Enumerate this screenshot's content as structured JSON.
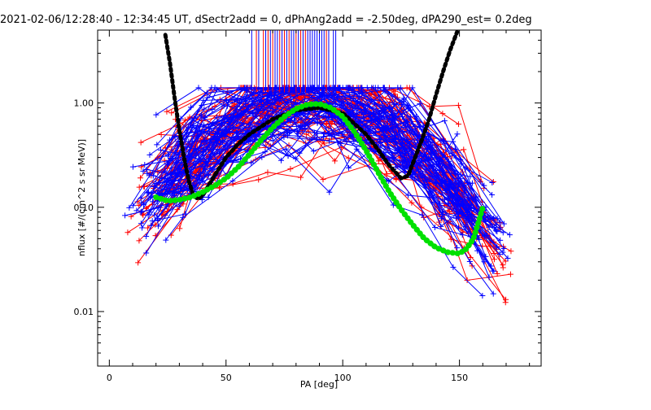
{
  "chart_data": {
    "type": "line",
    "title": "2021-02-06/12:28:40 - 12:34:45 UT, dSectr2add = 0, dPhAng2add = -2.50deg, dPA290_est=   0.2deg",
    "xlabel": "PA [deg]",
    "ylabel": "nflux [#/(cm^2 s sr MeV)]",
    "xlim": [
      -5,
      185
    ],
    "ylim": [
      0.003,
      5
    ],
    "yscale": "log",
    "grid": false,
    "xticks": [
      0,
      50,
      100,
      150
    ],
    "xtick_labels": [
      "0",
      "50",
      "100",
      "150"
    ],
    "yticks": [
      0.01,
      0.1,
      1.0
    ],
    "ytick_labels": [
      "0.01",
      "0.10",
      "1.00"
    ],
    "series": [
      {
        "color": "#000000",
        "style": "thick-dashed",
        "x": [
          24,
          26,
          28,
          30,
          32,
          34,
          36,
          38,
          40,
          45,
          50,
          55,
          60,
          70,
          80,
          90,
          100,
          110,
          115,
          120,
          125,
          128,
          131,
          134,
          137,
          140,
          143,
          146,
          149
        ],
        "y": [
          4.5,
          2.4,
          1.1,
          0.55,
          0.3,
          0.18,
          0.13,
          0.12,
          0.13,
          0.2,
          0.3,
          0.4,
          0.5,
          0.7,
          0.85,
          0.9,
          0.8,
          0.5,
          0.36,
          0.25,
          0.19,
          0.2,
          0.3,
          0.45,
          0.7,
          1.2,
          2.0,
          3.2,
          4.8
        ]
      },
      {
        "color": "#00e000",
        "style": "thick-dotted",
        "x": [
          20,
          25,
          30,
          35,
          40,
          45,
          50,
          55,
          60,
          65,
          70,
          75,
          80,
          85,
          90,
          95,
          100,
          105,
          110,
          115,
          120,
          125,
          130,
          135,
          140,
          145,
          150,
          153,
          156,
          158,
          160
        ],
        "y": [
          0.125,
          0.115,
          0.118,
          0.125,
          0.14,
          0.16,
          0.19,
          0.24,
          0.32,
          0.44,
          0.58,
          0.74,
          0.88,
          0.97,
          0.98,
          0.9,
          0.74,
          0.53,
          0.35,
          0.22,
          0.14,
          0.095,
          0.068,
          0.05,
          0.041,
          0.037,
          0.036,
          0.04,
          0.05,
          0.07,
          0.1
        ]
      }
    ],
    "scatter_profiles": {
      "red": {
        "color": "#ff0000",
        "count": 55
      },
      "blue": {
        "color": "#0000ff",
        "count": 70
      }
    },
    "top_marks": {
      "red_x": [
        63,
        66,
        68,
        70,
        73,
        75,
        77,
        80,
        82,
        84,
        86,
        90,
        93
      ],
      "blue_x": [
        61,
        64,
        67,
        69,
        71,
        72,
        74,
        76,
        78,
        79,
        81,
        83,
        85,
        86,
        87,
        88,
        89,
        90,
        91,
        92,
        94,
        96,
        97
      ],
      "y_low": 1.25
    }
  }
}
